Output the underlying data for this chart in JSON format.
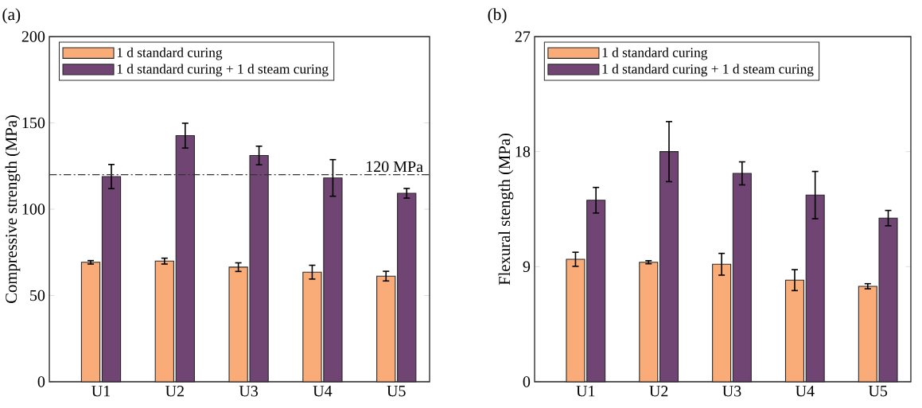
{
  "chart_data": [
    {
      "type": "bar",
      "title": "(a)",
      "ylabel": "Compressive strength (MPa)",
      "categories": [
        "U1",
        "U2",
        "U3",
        "U4",
        "U5"
      ],
      "series": [
        {
          "name": "1 d standard curing",
          "color": "#f9ab78",
          "values": [
            69.2,
            69.9,
            66.4,
            63.5,
            61.2
          ],
          "errors": [
            1,
            1.7,
            2.5,
            4,
            2.8
          ]
        },
        {
          "name": "1 d standard curing + 1 d steam curing",
          "color": "#704473",
          "values": [
            118.9,
            142.6,
            131.1,
            118.1,
            109.2
          ],
          "errors": [
            7,
            7.2,
            5.4,
            10.6,
            2.8
          ]
        }
      ],
      "ylim": [
        0,
        200
      ],
      "yticks": [
        0,
        50,
        100,
        150,
        200
      ],
      "legend": "top left",
      "ref_lines": [
        {
          "axis": "y",
          "value": 120,
          "label": "120 MPa",
          "line_style": "dashdot"
        }
      ]
    },
    {
      "type": "bar",
      "title": "(b)",
      "ylabel": "Flexural stength (MPa)",
      "categories": [
        "U1",
        "U2",
        "U3",
        "U4",
        "U5"
      ],
      "series": [
        {
          "name": "1 d standard curing",
          "color": "#f9ab78",
          "values": [
            9.58,
            9.35,
            9.19,
            7.95,
            7.47
          ],
          "errors": [
            0.55,
            0.12,
            0.85,
            0.82,
            0.2
          ]
        },
        {
          "name": "1 d standard curing + 1 d steam curing",
          "color": "#704473",
          "values": [
            14.2,
            18.0,
            16.3,
            14.6,
            12.8
          ],
          "errors": [
            1.0,
            2.35,
            0.9,
            1.85,
            0.6
          ]
        }
      ],
      "ylim": [
        0,
        27
      ],
      "yticks": [
        0,
        9,
        18,
        27
      ],
      "legend": "top left"
    }
  ]
}
